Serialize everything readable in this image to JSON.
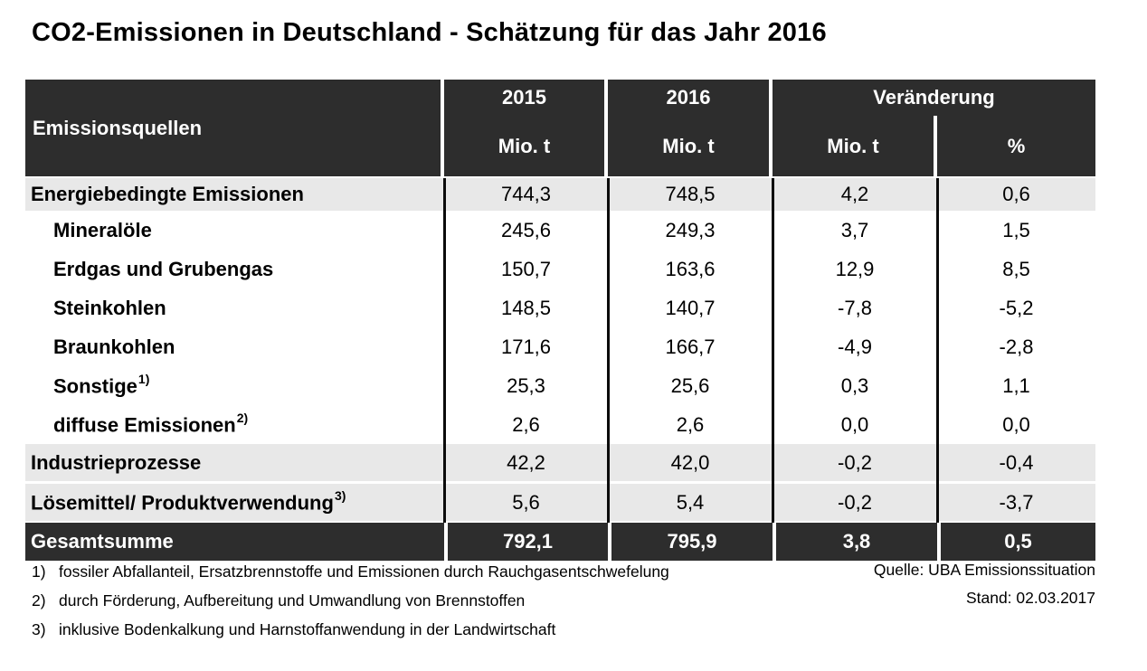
{
  "title": "CO2-Emissionen in Deutschland - Schätzung für das Jahr 2016",
  "table": {
    "header": {
      "sources_label": "Emissionsquellen",
      "year_2015": "2015",
      "year_2016": "2016",
      "change_label": "Veränderung",
      "unit_2015": "Mio. t",
      "unit_2016": "Mio. t",
      "unit_change_abs": "Mio. t",
      "unit_change_pct": "%"
    },
    "rows": [
      {
        "label": "Energiebedingte Emissionen",
        "sup": "",
        "indent": false,
        "variant": "gray-first",
        "v2015": "744,3",
        "v2016": "748,5",
        "change_abs": "4,2",
        "change_pct": "0,6"
      },
      {
        "label": "Mineralöle",
        "sup": "",
        "indent": true,
        "variant": "white",
        "v2015": "245,6",
        "v2016": "249,3",
        "change_abs": "3,7",
        "change_pct": "1,5"
      },
      {
        "label": "Erdgas und Grubengas",
        "sup": "",
        "indent": true,
        "variant": "white",
        "v2015": "150,7",
        "v2016": "163,6",
        "change_abs": "12,9",
        "change_pct": "8,5"
      },
      {
        "label": "Steinkohlen",
        "sup": "",
        "indent": true,
        "variant": "white",
        "v2015": "148,5",
        "v2016": "140,7",
        "change_abs": "-7,8",
        "change_pct": "-5,2"
      },
      {
        "label": "Braunkohlen",
        "sup": "",
        "indent": true,
        "variant": "white",
        "v2015": "171,6",
        "v2016": "166,7",
        "change_abs": "-4,9",
        "change_pct": "-2,8"
      },
      {
        "label": "Sonstige",
        "sup": "1)",
        "indent": true,
        "variant": "white",
        "v2015": "25,3",
        "v2016": "25,6",
        "change_abs": "0,3",
        "change_pct": "1,1"
      },
      {
        "label": "diffuse Emissionen",
        "sup": "2)",
        "indent": true,
        "variant": "white",
        "v2015": "2,6",
        "v2016": "2,6",
        "change_abs": "0,0",
        "change_pct": "0,0"
      },
      {
        "label": "Industrieprozesse",
        "sup": "",
        "indent": false,
        "variant": "gray-mid",
        "v2015": "42,2",
        "v2016": "42,0",
        "change_abs": "-0,2",
        "change_pct": "-0,4"
      },
      {
        "label": "Lösemittel/ Produktverwendung",
        "sup": "3)",
        "indent": false,
        "variant": "gray-mid gap3",
        "v2015": "5,6",
        "v2016": "5,4",
        "change_abs": "-0,2",
        "change_pct": "-3,7"
      },
      {
        "label": "Gesamtsumme",
        "sup": "",
        "indent": false,
        "variant": "dark gap2",
        "v2015": "792,1",
        "v2016": "795,9",
        "change_abs": "3,8",
        "change_pct": "0,5"
      }
    ]
  },
  "footnotes": [
    {
      "num": "1)",
      "text": "fossiler Abfallanteil, Ersatzbrennstoffe und Emissionen durch Rauchgasentschwefelung"
    },
    {
      "num": "2)",
      "text": "durch Förderung, Aufbereitung und Umwandlung von Brennstoffen"
    },
    {
      "num": "3)",
      "text": "inklusive Bodenkalkung und Harnstoffanwendung in der Landwirtschaft"
    }
  ],
  "source": {
    "quelle": "Quelle: UBA Emissionssituation",
    "stand": "Stand: 02.03.2017"
  },
  "colors": {
    "header_bg": "#2d2d2d",
    "total_row_bg": "#2d2d2d",
    "gray_row_bg": "#e8e8e8",
    "body_grid_line": "#0b0b0b",
    "header_separator": "#ffffff",
    "text": "#000000",
    "header_text": "#ffffff"
  },
  "chart_data": {
    "type": "table",
    "title": "CO2-Emissionen in Deutschland - Schätzung für das Jahr 2016",
    "columns": [
      "Emissionsquellen",
      "2015 Mio. t",
      "2016 Mio. t",
      "Veränderung Mio. t",
      "Veränderung %"
    ],
    "rows": [
      [
        "Energiebedingte Emissionen",
        744.3,
        748.5,
        4.2,
        0.6
      ],
      [
        "Mineralöle",
        245.6,
        249.3,
        3.7,
        1.5
      ],
      [
        "Erdgas und Grubengas",
        150.7,
        163.6,
        12.9,
        8.5
      ],
      [
        "Steinkohlen",
        148.5,
        140.7,
        -7.8,
        -5.2
      ],
      [
        "Braunkohlen",
        171.6,
        166.7,
        -4.9,
        -2.8
      ],
      [
        "Sonstige 1)",
        25.3,
        25.6,
        0.3,
        1.1
      ],
      [
        "diffuse Emissionen 2)",
        2.6,
        2.6,
        0.0,
        0.0
      ],
      [
        "Industrieprozesse",
        42.2,
        42.0,
        -0.2,
        -0.4
      ],
      [
        "Lösemittel/ Produktverwendung 3)",
        5.6,
        5.4,
        -0.2,
        -3.7
      ],
      [
        "Gesamtsumme",
        792.1,
        795.9,
        3.8,
        0.5
      ]
    ],
    "source": "Quelle: UBA Emissionssituation",
    "as_of": "Stand: 02.03.2017"
  }
}
